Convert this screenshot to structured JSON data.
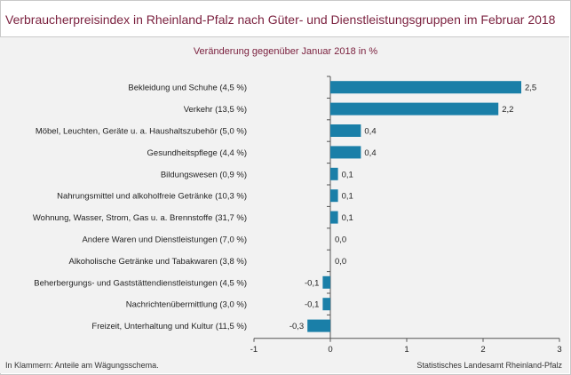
{
  "header": {
    "title": "Verbraucherpreisindex in Rheinland-Pfalz nach Güter- und Dienstleistungsgruppen im Februar 2018"
  },
  "footer": {
    "note": "In Klammern: Anteile am Wägungsschema.",
    "source": "Statistisches Landesamt Rheinland-Pfalz"
  },
  "colors": {
    "bar": "#1a7fa8",
    "title": "#7a1f3d",
    "panel": "#f2f2f2",
    "axis": "#555555"
  },
  "chart_data": {
    "type": "bar",
    "orientation": "horizontal",
    "subtitle": "Veränderung gegenüber Januar 2018 in %",
    "categories": [
      "Bekleidung und Schuhe (4,5 %)",
      "Verkehr (13,5 %)",
      "Möbel, Leuchten, Geräte u. a. Haushaltszubehör (5,0 %)",
      "Gesundheitspflege (4,4 %)",
      "Bildungswesen (0,9 %)",
      "Nahrungsmittel und alkoholfreie Getränke (10,3 %)",
      "Wohnung, Wasser, Strom, Gas u. a. Brennstoffe (31,7 %)",
      "Andere Waren und Dienstleistungen (7,0 %)",
      "Alkoholische Getränke und Tabakwaren (3,8 %)",
      "Beherbergungs- und Gaststättendienstleistungen (4,5 %)",
      "Nachrichtenübermittlung (3,0 %)",
      "Freizeit, Unterhaltung und Kultur (11,5 %)"
    ],
    "values": [
      2.5,
      2.2,
      0.4,
      0.4,
      0.1,
      0.1,
      0.1,
      0.0,
      0.0,
      -0.1,
      -0.1,
      -0.3
    ],
    "value_labels": [
      "2,5",
      "2,2",
      "0,4",
      "0,4",
      "0,1",
      "0,1",
      "0,1",
      "0,0",
      "0,0",
      "-0,1",
      "-0,1",
      "-0,3"
    ],
    "xlim": [
      -1,
      3
    ],
    "xticks": [
      -1,
      0,
      1,
      2,
      3
    ],
    "xtick_labels": [
      "-1",
      "0",
      "1",
      "2",
      "3"
    ],
    "grid": false,
    "legend": "none"
  }
}
